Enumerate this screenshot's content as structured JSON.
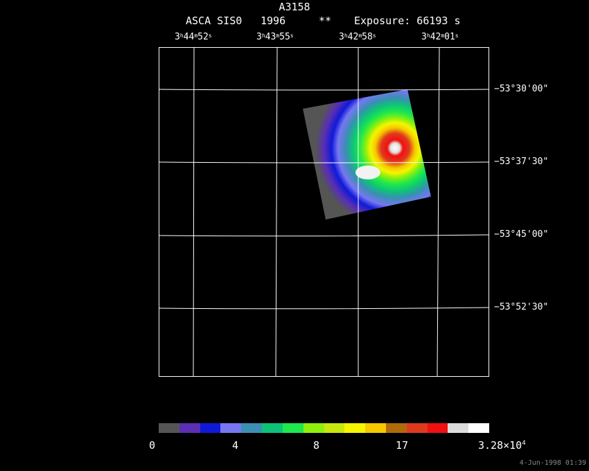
{
  "title": "A3158",
  "subtitle": {
    "instrument": "ASCA SIS0",
    "year": "1996",
    "marker": "**",
    "exposure": "Exposure: 66193 s"
  },
  "ra_labels": [
    {
      "h": "3",
      "hu": "h",
      "m": "44",
      "mu": "m",
      "s": "52",
      "su": "s"
    },
    {
      "h": "3",
      "hu": "h",
      "m": "43",
      "mu": "m",
      "s": "55",
      "su": "s"
    },
    {
      "h": "3",
      "hu": "h",
      "m": "42",
      "mu": "m",
      "s": "58",
      "su": "s"
    },
    {
      "h": "3",
      "hu": "h",
      "m": "42",
      "mu": "m",
      "s": "01",
      "su": "s"
    }
  ],
  "dec_labels": [
    "−53°30'00\"",
    "−53°37'30\"",
    "−53°45'00\"",
    "−53°52'30\""
  ],
  "colorbar": {
    "colors": [
      "#555555",
      "#5a2fb4",
      "#0f1ad8",
      "#7777f2",
      "#3a8fb2",
      "#0fc27a",
      "#1ee84c",
      "#8ef00c",
      "#c6e80d",
      "#f5f500",
      "#f5c800",
      "#b06a0a",
      "#e03a1e",
      "#f01010",
      "#dcdcdc",
      "#ffffff"
    ],
    "tick_labels": [
      "0",
      "4",
      "8",
      "17"
    ],
    "max_label": "3.28×10",
    "max_exp": "4"
  },
  "timestamp": "4-Jun-1998 01:39"
}
